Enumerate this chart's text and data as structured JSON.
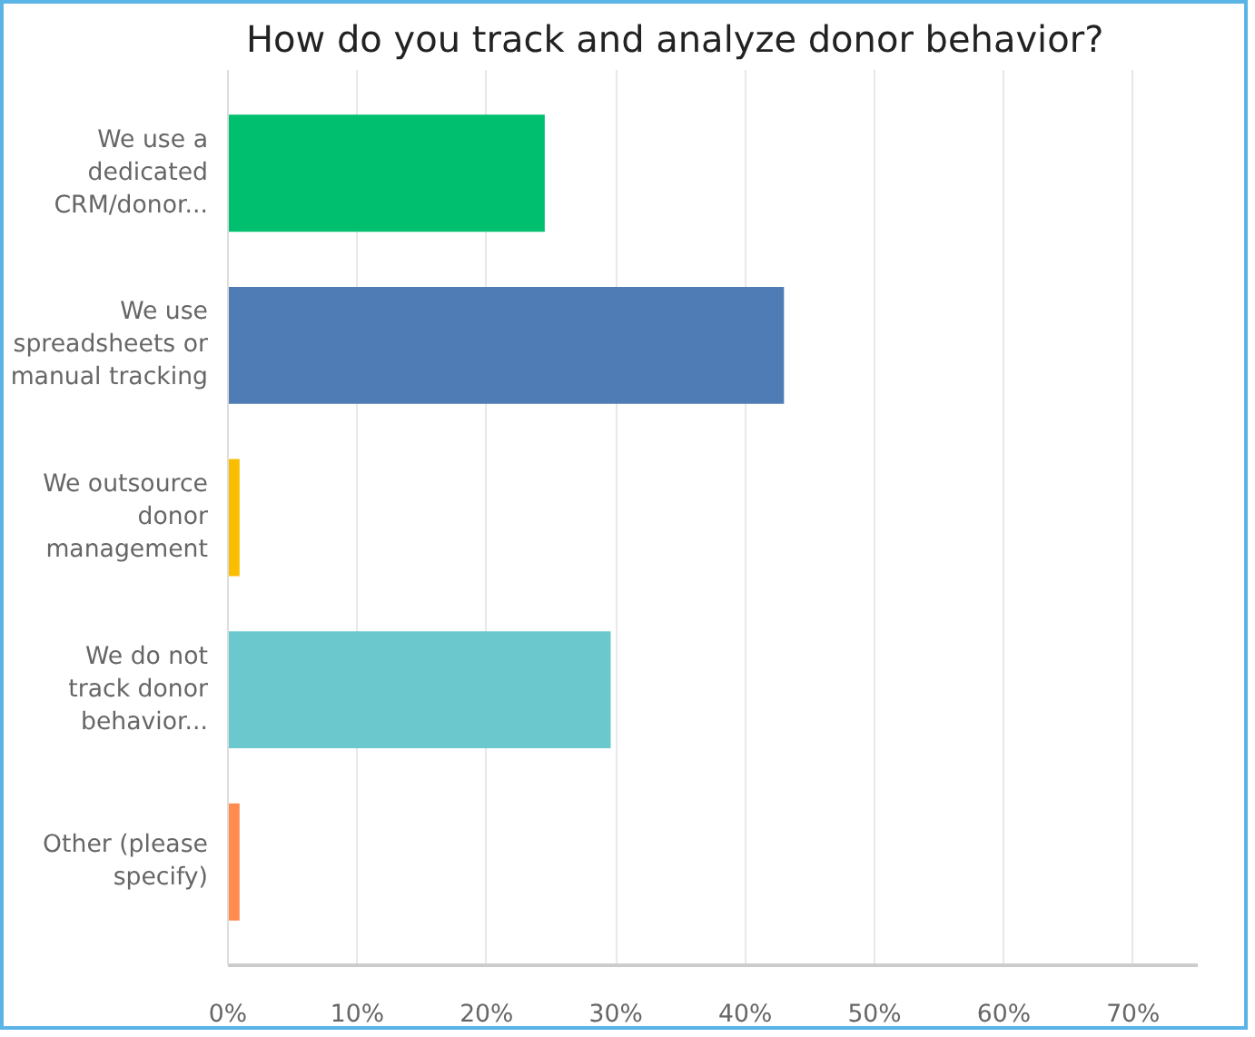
{
  "chart_data": {
    "type": "bar",
    "orientation": "horizontal",
    "title": "How do you track and analyze donor behavior?",
    "categories": [
      "We use a\ndedicated\nCRM/donor...",
      "We use\nspreadsheets or\nmanual tracking",
      "We outsource\ndonor\nmanagement",
      "We do not\ntrack donor\nbehavior...",
      "Other (please\nspecify)"
    ],
    "values": [
      24.5,
      43,
      0.9,
      29.6,
      0.9
    ],
    "colors": [
      "#00bf6f",
      "#507cb6",
      "#f9be00",
      "#6bc8cd",
      "#ff8b4f"
    ],
    "xlim": [
      0,
      75
    ],
    "xticks": [
      {
        "value": 0,
        "label": "0%"
      },
      {
        "value": 10,
        "label": "10%"
      },
      {
        "value": 20,
        "label": "20%"
      },
      {
        "value": 30,
        "label": "30%"
      },
      {
        "value": 40,
        "label": "40%"
      },
      {
        "value": 50,
        "label": "50%"
      },
      {
        "value": 60,
        "label": "60%"
      },
      {
        "value": 70,
        "label": "70%"
      }
    ],
    "grid": "x"
  }
}
